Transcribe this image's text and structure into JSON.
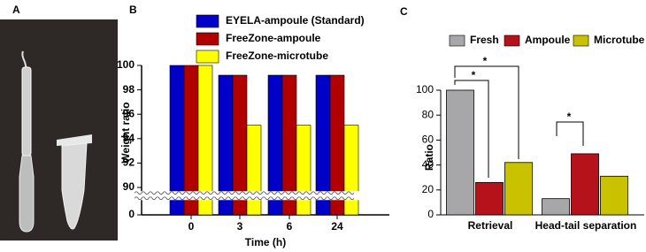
{
  "panels": [
    "A",
    "B",
    "C"
  ],
  "chart_data": [
    {
      "type": "bar",
      "x_label": "Time (h)",
      "y_label": "Weight ratio",
      "categories": [
        "0",
        "3",
        "6",
        "24"
      ],
      "series": [
        {
          "name": "EYELA-ampoule (Standard)",
          "color": "#0000c8",
          "values": [
            100,
            99.2,
            99.2,
            99.2
          ]
        },
        {
          "name": "FreeZone-ampoule",
          "color": "#b00000",
          "values": [
            100,
            99.2,
            99.2,
            99.2
          ]
        },
        {
          "name": "FreeZone-microtube",
          "color": "#ffff00",
          "values": [
            100,
            95.1,
            95.1,
            95.1
          ]
        }
      ],
      "ylim": [
        0,
        100
      ],
      "ybreak": [
        1,
        89.6
      ],
      "yticks": [
        0,
        90,
        92,
        94,
        96,
        98,
        100
      ]
    },
    {
      "type": "bar",
      "y_label": "Ratio",
      "categories": [
        "Retrieval",
        "Head-tail separation"
      ],
      "series": [
        {
          "name": "Fresh",
          "color": "#a7a7aa",
          "values": [
            100,
            13
          ]
        },
        {
          "name": "Ampoule",
          "color": "#b5121b",
          "values": [
            26,
            49
          ]
        },
        {
          "name": "Microtube",
          "color": "#c9c200",
          "values": [
            42,
            31
          ]
        }
      ],
      "ylim": [
        0,
        100
      ],
      "yticks": [
        0,
        20,
        40,
        60,
        80,
        100
      ],
      "annotations": [
        "*",
        "*",
        "*"
      ]
    }
  ]
}
